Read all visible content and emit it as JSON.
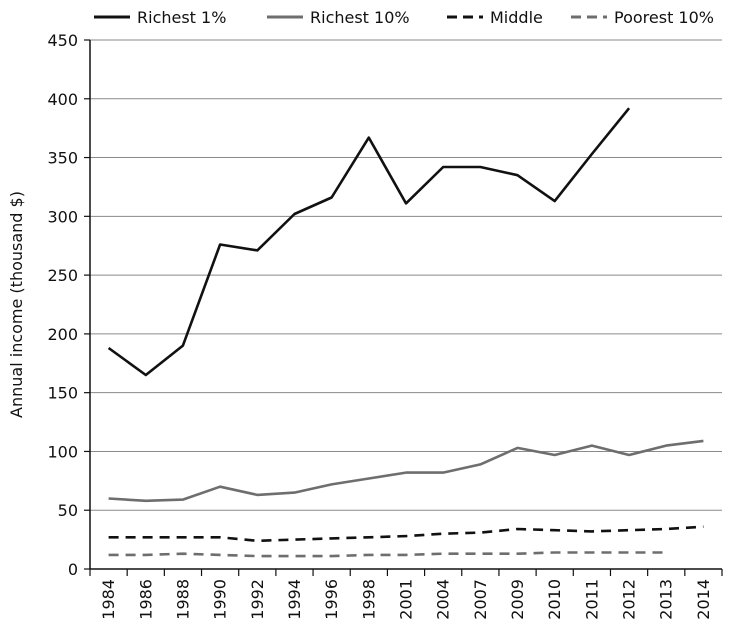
{
  "chart_data": {
    "type": "line",
    "title": "",
    "ylabel": "Annual income (thousand $)",
    "xlabel": "",
    "ylim": [
      0,
      450
    ],
    "yticks": [
      0,
      50,
      100,
      150,
      200,
      250,
      300,
      350,
      400,
      450
    ],
    "grid": "horizontal",
    "legend_position": "top",
    "categories": [
      "1984",
      "1986",
      "1988",
      "1990",
      "1992",
      "1994",
      "1996",
      "1998",
      "2001",
      "2004",
      "2007",
      "2009",
      "2010",
      "2011",
      "2012",
      "2013",
      "2014"
    ],
    "series": [
      {
        "name": "Richest 1%",
        "color": "#111111",
        "dash": "solid",
        "values": [
          188,
          165,
          190,
          276,
          271,
          302,
          316,
          367,
          311,
          342,
          342,
          335,
          313,
          353,
          392,
          null,
          null
        ]
      },
      {
        "name": "Richest 10%",
        "color": "#6e6e6e",
        "dash": "solid",
        "values": [
          60,
          58,
          59,
          70,
          63,
          65,
          72,
          77,
          82,
          82,
          89,
          103,
          97,
          105,
          97,
          105,
          109
        ]
      },
      {
        "name": "Middle",
        "color": "#111111",
        "dash": "dashed",
        "values": [
          27,
          27,
          27,
          27,
          24,
          25,
          26,
          27,
          28,
          30,
          31,
          34,
          33,
          32,
          33,
          34,
          36
        ]
      },
      {
        "name": "Poorest 10%",
        "color": "#6e6e6e",
        "dash": "dashed",
        "values": [
          12,
          12,
          13,
          12,
          11,
          11,
          11,
          12,
          12,
          13,
          13,
          13,
          14,
          14,
          14,
          14,
          null
        ]
      }
    ]
  }
}
